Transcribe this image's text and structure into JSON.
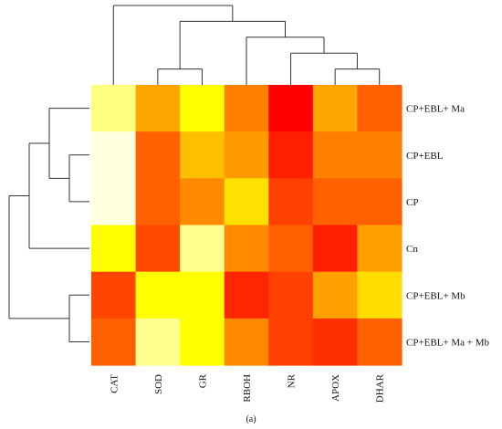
{
  "chart_data": {
    "type": "heatmap",
    "caption": "(a)",
    "columns": [
      "CAT",
      "SOD",
      "GR",
      "RBOH",
      "NR",
      "APOX",
      "DHAR"
    ],
    "rows": [
      "CP+EBL+ Ma",
      "CP+EBL",
      "CP",
      "Cn",
      "CP+EBL+ Mb",
      "CP+EBL+ Ma + Mb"
    ],
    "cells": [
      [
        "#FFFF80",
        "#FFA500",
        "#FFFF00",
        "#FF8000",
        "#FF0000",
        "#FFA500",
        "#FF6000"
      ],
      [
        "#FFFFE0",
        "#FF6000",
        "#FFBE00",
        "#FF9A00",
        "#FF2000",
        "#FF8000",
        "#FF8000"
      ],
      [
        "#FFFFE0",
        "#FF6000",
        "#FF8A00",
        "#FFE000",
        "#FF4000",
        "#FF6000",
        "#FF6000"
      ],
      [
        "#FFFF00",
        "#FF4A00",
        "#FFFF90",
        "#FF8A00",
        "#FF6000",
        "#FF2000",
        "#FFA000"
      ],
      [
        "#FF4500",
        "#FFFF00",
        "#FFFF00",
        "#FF2500",
        "#FF4000",
        "#FFA000",
        "#FFDD00"
      ],
      [
        "#FF6000",
        "#FFFF90",
        "#FFFF00",
        "#FF8A00",
        "#FF4000",
        "#FF3000",
        "#FF6000"
      ]
    ],
    "column_dendrogram": [
      "CAT",
      [
        [
          "SOD",
          "GR"
        ],
        [
          "RBOH",
          [
            "NR",
            [
              "APOX",
              "DHAR"
            ]
          ]
        ]
      ]
    ],
    "row_dendrogram": [
      [
        [
          "CP+EBL+ Ma",
          [
            "CP+EBL",
            "CP"
          ]
        ],
        "Cn"
      ],
      [
        "CP+EBL+ Mb",
        "CP+EBL+ Ma + Mb"
      ]
    ]
  }
}
